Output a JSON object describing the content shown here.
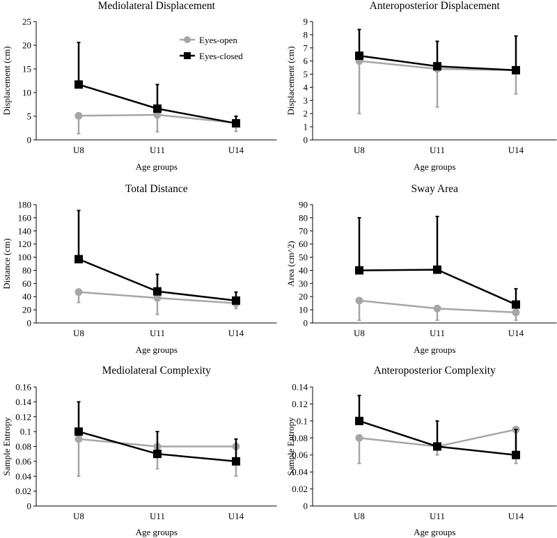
{
  "colors": {
    "eyes_open": "#a6a6a6",
    "eyes_closed": "#000000",
    "axis": "#000000"
  },
  "legend": {
    "eyes_open_label": "Eyes-open",
    "eyes_closed_label": "Eyes-closed"
  },
  "chart_data": [
    {
      "type": "line",
      "title": "Mediolateral Displacement",
      "xlabel": "Age groups",
      "ylabel": "Displacement (cm)",
      "categories": [
        "U8",
        "U11",
        "U14"
      ],
      "ylim": [
        0,
        25
      ],
      "yticks": [
        "0",
        "5",
        "10",
        "15",
        "20",
        "25"
      ],
      "ytick_values": [
        0,
        5,
        10,
        15,
        20,
        25
      ],
      "series": [
        {
          "name": "Eyes-open",
          "values": [
            5.1,
            5.3,
            3.6
          ],
          "err_low": [
            1.3,
            1.7,
            1.8
          ],
          "err_high": [
            5.1,
            5.3,
            3.6
          ]
        },
        {
          "name": "Eyes-closed",
          "values": [
            11.7,
            6.6,
            3.5
          ],
          "err_low": [
            11.7,
            6.6,
            3.5
          ],
          "err_high": [
            20.6,
            11.7,
            5.0
          ]
        }
      ]
    },
    {
      "type": "line",
      "title": "Anteroposterior Displacement",
      "xlabel": "Age groups",
      "ylabel": "Displacement (cm)",
      "categories": [
        "U8",
        "U11",
        "U14"
      ],
      "ylim": [
        0,
        9
      ],
      "yticks": [
        "0",
        "1",
        "2",
        "3",
        "4",
        "5",
        "6",
        "7",
        "8",
        "9"
      ],
      "ytick_values": [
        0,
        1,
        2,
        3,
        4,
        5,
        6,
        7,
        8,
        9
      ],
      "series": [
        {
          "name": "Eyes-open",
          "values": [
            6.0,
            5.4,
            5.3
          ],
          "err_low": [
            2.0,
            2.5,
            3.5
          ],
          "err_high": [
            6.0,
            5.4,
            5.3
          ]
        },
        {
          "name": "Eyes-closed",
          "values": [
            6.4,
            5.6,
            5.3
          ],
          "err_low": [
            6.4,
            5.6,
            5.3
          ],
          "err_high": [
            8.4,
            7.5,
            7.9
          ]
        }
      ]
    },
    {
      "type": "line",
      "title": "Total Distance",
      "xlabel": "Age groups",
      "ylabel": "Distance (cm)",
      "categories": [
        "U8",
        "U11",
        "U14"
      ],
      "ylim": [
        0,
        180
      ],
      "yticks": [
        "0",
        "20",
        "40",
        "60",
        "80",
        "100",
        "120",
        "140",
        "160",
        "180"
      ],
      "ytick_values": [
        0,
        20,
        40,
        60,
        80,
        100,
        120,
        140,
        160,
        180
      ],
      "series": [
        {
          "name": "Eyes-open",
          "values": [
            47,
            38,
            30
          ],
          "err_low": [
            31,
            13,
            22
          ],
          "err_high": [
            47,
            38,
            30
          ]
        },
        {
          "name": "Eyes-closed",
          "values": [
            97,
            48,
            34
          ],
          "err_low": [
            97,
            48,
            34
          ],
          "err_high": [
            171,
            74,
            47
          ]
        }
      ]
    },
    {
      "type": "line",
      "title": "Sway Area",
      "xlabel": "Age groups",
      "ylabel": "Area (cm^2)",
      "categories": [
        "U8",
        "U11",
        "U14"
      ],
      "ylim": [
        0,
        90
      ],
      "yticks": [
        "0",
        "10",
        "20",
        "30",
        "40",
        "50",
        "60",
        "70",
        "80",
        "90"
      ],
      "ytick_values": [
        0,
        10,
        20,
        30,
        40,
        50,
        60,
        70,
        80,
        90
      ],
      "series": [
        {
          "name": "Eyes-open",
          "values": [
            17,
            11,
            8
          ],
          "err_low": [
            2,
            2,
            2
          ],
          "err_high": [
            17,
            11,
            8
          ]
        },
        {
          "name": "Eyes-closed",
          "values": [
            40,
            40.5,
            14
          ],
          "err_low": [
            40,
            40.5,
            14
          ],
          "err_high": [
            80,
            81,
            26
          ]
        }
      ]
    },
    {
      "type": "line",
      "title": "Mediolateral Complexity",
      "xlabel": "Age groups",
      "ylabel": "Sample Entropy",
      "categories": [
        "U8",
        "U11",
        "U14"
      ],
      "ylim": [
        0,
        0.16
      ],
      "yticks": [
        "0",
        "0.02",
        "0.04",
        "0.06",
        "0.08",
        "0.1",
        "0.12",
        "0.14",
        "0.16"
      ],
      "ytick_values": [
        0,
        0.02,
        0.04,
        0.06,
        0.08,
        0.1,
        0.12,
        0.14,
        0.16
      ],
      "series": [
        {
          "name": "Eyes-open",
          "values": [
            0.09,
            0.08,
            0.08
          ],
          "err_low": [
            0.04,
            0.05,
            0.04
          ],
          "err_high": [
            0.09,
            0.08,
            0.08
          ]
        },
        {
          "name": "Eyes-closed",
          "values": [
            0.1,
            0.07,
            0.06
          ],
          "err_low": [
            0.1,
            0.07,
            0.06
          ],
          "err_high": [
            0.14,
            0.1,
            0.09
          ]
        }
      ]
    },
    {
      "type": "line",
      "title": "Anteroposterior Complexity",
      "xlabel": "Age groups",
      "ylabel": "Sample Entropy",
      "categories": [
        "U8",
        "U11",
        "U14"
      ],
      "ylim": [
        0,
        0.14
      ],
      "yticks": [
        "0",
        "0.02",
        "0.04",
        "0.06",
        "0.08",
        "0.1",
        "0.12",
        "0.14"
      ],
      "ytick_values": [
        0,
        0.02,
        0.04,
        0.06,
        0.08,
        0.1,
        0.12,
        0.14
      ],
      "series": [
        {
          "name": "Eyes-open",
          "values": [
            0.08,
            0.07,
            0.09
          ],
          "err_low": [
            0.05,
            0.06,
            0.05
          ],
          "err_high": [
            0.08,
            0.07,
            0.09
          ]
        },
        {
          "name": "Eyes-closed",
          "values": [
            0.1,
            0.07,
            0.06
          ],
          "err_low": [
            0.1,
            0.07,
            0.06
          ],
          "err_high": [
            0.13,
            0.1,
            0.09
          ]
        }
      ]
    }
  ]
}
